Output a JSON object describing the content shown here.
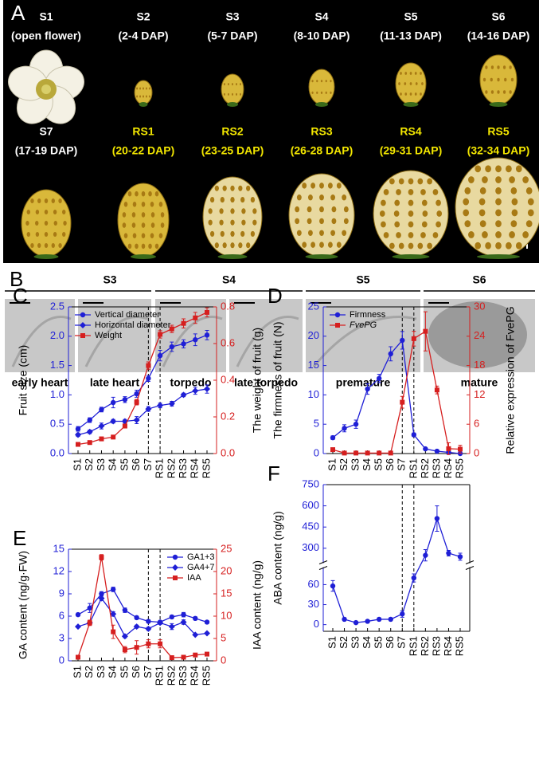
{
  "panel_a": {
    "letter": "A",
    "stages": [
      {
        "name": "S1",
        "dap": "(open flower)",
        "color": "#ffffff"
      },
      {
        "name": "S2",
        "dap": "(2-4 DAP)",
        "color": "#ffffff"
      },
      {
        "name": "S3",
        "dap": "(5-7 DAP)",
        "color": "#ffffff"
      },
      {
        "name": "S4",
        "dap": "(8-10 DAP)",
        "color": "#ffffff"
      },
      {
        "name": "S5",
        "dap": "(11-13 DAP)",
        "color": "#ffffff"
      },
      {
        "name": "S6",
        "dap": "(14-16 DAP)",
        "color": "#ffffff"
      },
      {
        "name": "S7",
        "dap": "(17-19 DAP)",
        "color": "#ffffff"
      },
      {
        "name": "RS1",
        "dap": "(20-22 DAP)",
        "color": "#f2e600"
      },
      {
        "name": "RS2",
        "dap": "(23-25 DAP)",
        "color": "#f2e600"
      },
      {
        "name": "RS3",
        "dap": "(26-28 DAP)",
        "color": "#f2e600"
      },
      {
        "name": "RS4",
        "dap": "(29-31 DAP)",
        "color": "#f2e600"
      },
      {
        "name": "RS5",
        "dap": "(32-34 DAP)",
        "color": "#f2e600"
      }
    ]
  },
  "panel_b": {
    "letter": "B",
    "stages": [
      "S3",
      "S4",
      "S5",
      "S6"
    ],
    "embryos": [
      "early heart",
      "late heart",
      "torpedo",
      "late torpedo",
      "premature",
      "mature"
    ]
  },
  "chart_data": [
    {
      "type": "line",
      "panel": "C",
      "y_label": "Fruit size (cm)",
      "y2_label": "The weight of fruit (g)",
      "categories": [
        "S1",
        "S2",
        "S3",
        "S4",
        "S5",
        "S6",
        "S7",
        "RS1",
        "RS2",
        "RS3",
        "RS4",
        "RS5"
      ],
      "ylim": [
        0,
        2.5
      ],
      "yticks": [
        {
          "value": 0,
          "label": "0.0"
        },
        0.5,
        {
          "value": 1,
          "label": "1.0"
        },
        1.5,
        {
          "value": 2,
          "label": "2.0"
        },
        2.5
      ],
      "y2lim": [
        0,
        0.8
      ],
      "y2ticks": [
        {
          "value": 0,
          "label": "0.0"
        },
        0.2,
        0.4,
        0.6,
        0.8
      ],
      "y_color": "#1f1fd6",
      "y2_color": "#d61f1f",
      "dashed_at": [
        "S7",
        "RS1"
      ],
      "legend": "top-left",
      "series": [
        {
          "name": "Vertical diameter",
          "color": "#1f1fd6",
          "marker": "circle",
          "values": [
            0.42,
            0.57,
            0.75,
            0.87,
            0.92,
            1.02,
            1.28,
            1.67,
            1.82,
            1.87,
            1.94,
            2.02
          ],
          "errors": [
            0.04,
            0.04,
            0.04,
            0.09,
            0.05,
            0.06,
            0.05,
            0.09,
            0.08,
            0.07,
            0.1,
            0.08
          ]
        },
        {
          "name": "Horizontal diameter",
          "color": "#1f1fd6",
          "marker": "diamond",
          "values": [
            0.32,
            0.37,
            0.47,
            0.55,
            0.55,
            0.57,
            0.76,
            0.82,
            0.85,
            1.0,
            1.07,
            1.1
          ],
          "errors": [
            0.03,
            0.03,
            0.05,
            0.03,
            0.03,
            0.06,
            0.04,
            0.04,
            0.04,
            0.03,
            0.06,
            0.07
          ]
        },
        {
          "name": "Weight",
          "color": "#d61f1f",
          "marker": "square",
          "axis": "y2",
          "values": [
            0.05,
            0.06,
            0.08,
            0.09,
            0.15,
            0.28,
            0.48,
            0.65,
            0.68,
            0.71,
            0.74,
            0.77
          ],
          "errors": [
            0.005,
            0.005,
            0.01,
            0.01,
            0.01,
            0.015,
            0.02,
            0.02,
            0.02,
            0.025,
            0.03,
            0.025
          ]
        }
      ]
    },
    {
      "type": "line",
      "panel": "D",
      "y_label": "The firmness of fruit (N)",
      "y2_label": "Relative expression of FvePG",
      "categories": [
        "S1",
        "S2",
        "S3",
        "S4",
        "S5",
        "S6",
        "S7",
        "RS1",
        "RS2",
        "RS3",
        "RS4",
        "RS5"
      ],
      "ylim": [
        0,
        25
      ],
      "yticks": [
        0,
        5,
        10,
        15,
        20,
        25
      ],
      "y2lim": [
        0,
        30
      ],
      "y2ticks": [
        0,
        6,
        12,
        18,
        24,
        30
      ],
      "y_color": "#1f1fd6",
      "y2_color": "#d61f1f",
      "dashed_at": [
        "S7",
        "RS1"
      ],
      "legend": "top-left",
      "series": [
        {
          "name": "Firmness",
          "color": "#1f1fd6",
          "marker": "circle",
          "values": [
            2.7,
            4.3,
            5.0,
            11.0,
            12.8,
            17.0,
            19.3,
            3.2,
            0.8,
            0.4,
            0.2,
            0.0
          ],
          "errors": [
            0.3,
            0.6,
            0.7,
            0.9,
            0.7,
            1.2,
            1.5,
            0.3,
            0.1,
            0.1,
            0.1,
            0.1
          ]
        },
        {
          "name": "FvePG",
          "color": "#d61f1f",
          "marker": "square",
          "axis": "y2",
          "italic": true,
          "values": [
            0.8,
            0.1,
            0.1,
            0.1,
            0.1,
            0.1,
            10.5,
            23.5,
            25.0,
            13.0,
            1.0,
            0.9
          ],
          "errors": [
            0.2,
            0.1,
            0.1,
            0.1,
            0.1,
            0.1,
            1.2,
            1.5,
            4.0,
            0.8,
            1.2,
            0.8
          ]
        }
      ]
    },
    {
      "type": "line",
      "panel": "E",
      "y_label": "GA content (ng/g·FW)",
      "y2_label": "IAA content (ng/g)",
      "categories": [
        "S1",
        "S2",
        "S3",
        "S4",
        "S5",
        "S6",
        "S7",
        "RS1",
        "RS2",
        "RS3",
        "RS4",
        "RS5"
      ],
      "ylim": [
        0,
        15
      ],
      "yticks": [
        0,
        3,
        6,
        9,
        12,
        15
      ],
      "y2lim": [
        0,
        25
      ],
      "y2ticks": [
        0,
        5,
        10,
        15,
        20,
        25
      ],
      "y_color": "#1f1fd6",
      "y2_color": "#d61f1f",
      "dashed_at": [
        "S7",
        "RS1"
      ],
      "legend": "top-right",
      "series": [
        {
          "name": "GA1+3",
          "color": "#1f1fd6",
          "marker": "circle",
          "values": [
            6.2,
            7.1,
            9.0,
            9.6,
            6.8,
            5.8,
            5.3,
            5.2,
            5.9,
            6.2,
            5.7,
            5.2
          ],
          "errors": [
            0.2,
            0.6,
            0.3,
            0.3,
            0.3,
            0.2,
            0.2,
            0.2,
            0.2,
            0.3,
            0.2,
            0.2
          ]
        },
        {
          "name": "GA4+7",
          "color": "#1f1fd6",
          "marker": "diamond",
          "values": [
            4.6,
            5.1,
            8.4,
            6.3,
            3.3,
            4.6,
            4.3,
            5.1,
            4.6,
            5.2,
            3.5,
            3.7
          ],
          "errors": [
            0.1,
            0.2,
            0.3,
            0.3,
            0.2,
            0.2,
            0.2,
            0.2,
            0.4,
            0.3,
            0.1,
            0.1
          ]
        },
        {
          "name": "IAA",
          "color": "#d61f1f",
          "marker": "square",
          "axis": "y2",
          "values": [
            0.8,
            8.5,
            23.2,
            6.5,
            2.5,
            3.0,
            3.8,
            3.8,
            0.7,
            0.8,
            1.3,
            1.5
          ],
          "errors": [
            0.2,
            0.6,
            0.6,
            1.5,
            0.7,
            1.5,
            0.9,
            0.9,
            0.1,
            0.2,
            0.2,
            0.2
          ]
        }
      ]
    },
    {
      "type": "line",
      "panel": "F",
      "y_label": "ABA content (ng/g)",
      "categories": [
        "S1",
        "S2",
        "S3",
        "S4",
        "S5",
        "S6",
        "S7",
        "RS1",
        "RS2",
        "RS3",
        "RS4",
        "RS5"
      ],
      "ylim": [
        -10,
        750
      ],
      "axis_break": [
        85,
        200
      ],
      "yticks": [
        0,
        30,
        60,
        300,
        450,
        600,
        750
      ],
      "y_color": "#1f1fd6",
      "dashed_at": [
        "S7",
        "RS1"
      ],
      "series": [
        {
          "name": "ABA",
          "color": "#1f1fd6",
          "marker": "circle",
          "show_legend": false,
          "values": [
            58,
            8,
            3,
            5,
            8,
            8,
            16,
            70,
            250,
            510,
            265,
            240
          ],
          "errors": [
            8,
            1,
            1,
            2,
            1,
            1,
            5,
            6,
            40,
            90,
            20,
            25
          ]
        }
      ]
    }
  ]
}
